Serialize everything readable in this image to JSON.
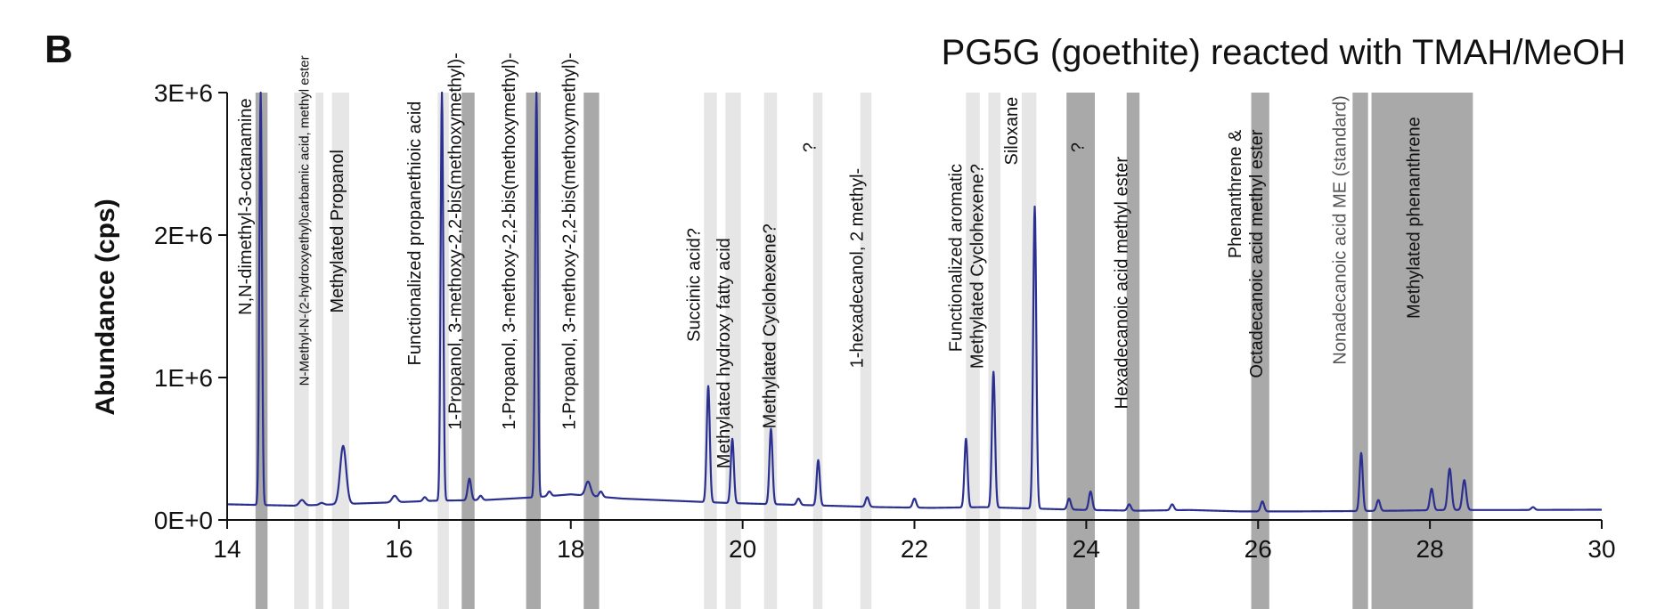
{
  "panel_letter": "B",
  "chart_data": {
    "type": "line",
    "title": "PG5G (goethite) reacted with TMAH/MeOH",
    "xlabel": "",
    "ylabel": "Abundance (cps)",
    "xlim": [
      14,
      30
    ],
    "ylim": [
      0,
      3000000
    ],
    "xticks": [
      14,
      16,
      18,
      20,
      22,
      24,
      26,
      28,
      30
    ],
    "yticks": [
      {
        "value": 0,
        "label": "0E+0"
      },
      {
        "value": 1000000,
        "label": "1E+6"
      },
      {
        "value": 2000000,
        "label": "2E+6"
      },
      {
        "value": 3000000,
        "label": "3E+6"
      }
    ],
    "grid": false,
    "legend": "none",
    "series_color": "#2b2f8f",
    "highlight_color_dark": "#a9a9a9",
    "highlight_color_light": "#e6e6e6",
    "baseline": [
      [
        14.0,
        110000
      ],
      [
        14.8,
        100000
      ],
      [
        15.5,
        115000
      ],
      [
        16.0,
        125000
      ],
      [
        16.4,
        135000
      ],
      [
        17.0,
        140000
      ],
      [
        17.6,
        160000
      ],
      [
        18.0,
        180000
      ],
      [
        18.6,
        150000
      ],
      [
        19.2,
        135000
      ],
      [
        19.8,
        120000
      ],
      [
        20.4,
        110000
      ],
      [
        21.0,
        100000
      ],
      [
        21.6,
        90000
      ],
      [
        22.2,
        85000
      ],
      [
        22.8,
        90000
      ],
      [
        23.4,
        80000
      ],
      [
        24.0,
        70000
      ],
      [
        24.6,
        65000
      ],
      [
        25.2,
        70000
      ],
      [
        25.8,
        60000
      ],
      [
        26.4,
        60000
      ],
      [
        27.0,
        62000
      ],
      [
        27.6,
        65000
      ],
      [
        28.2,
        70000
      ],
      [
        29.0,
        70000
      ],
      [
        30.0,
        72000
      ]
    ],
    "peaks": [
      {
        "rt": 14.39,
        "height": 3000000,
        "width": 0.015
      },
      {
        "rt": 14.87,
        "height": 140000,
        "width": 0.03
      },
      {
        "rt": 15.1,
        "height": 120000,
        "width": 0.025
      },
      {
        "rt": 15.35,
        "height": 520000,
        "width": 0.035
      },
      {
        "rt": 15.95,
        "height": 170000,
        "width": 0.03
      },
      {
        "rt": 16.3,
        "height": 160000,
        "width": 0.02
      },
      {
        "rt": 16.5,
        "height": 3000000,
        "width": 0.015
      },
      {
        "rt": 16.82,
        "height": 290000,
        "width": 0.02
      },
      {
        "rt": 16.95,
        "height": 170000,
        "width": 0.02
      },
      {
        "rt": 17.6,
        "height": 3000000,
        "width": 0.015
      },
      {
        "rt": 17.75,
        "height": 200000,
        "width": 0.02
      },
      {
        "rt": 18.2,
        "height": 270000,
        "width": 0.03
      },
      {
        "rt": 18.35,
        "height": 200000,
        "width": 0.02
      },
      {
        "rt": 19.6,
        "height": 940000,
        "width": 0.018
      },
      {
        "rt": 19.88,
        "height": 570000,
        "width": 0.018
      },
      {
        "rt": 20.33,
        "height": 640000,
        "width": 0.018
      },
      {
        "rt": 20.65,
        "height": 150000,
        "width": 0.02
      },
      {
        "rt": 20.88,
        "height": 420000,
        "width": 0.018
      },
      {
        "rt": 21.45,
        "height": 160000,
        "width": 0.02
      },
      {
        "rt": 22.0,
        "height": 150000,
        "width": 0.02
      },
      {
        "rt": 22.6,
        "height": 570000,
        "width": 0.018
      },
      {
        "rt": 22.92,
        "height": 1040000,
        "width": 0.018
      },
      {
        "rt": 23.4,
        "height": 2200000,
        "width": 0.018
      },
      {
        "rt": 23.8,
        "height": 150000,
        "width": 0.02
      },
      {
        "rt": 24.05,
        "height": 200000,
        "width": 0.02
      },
      {
        "rt": 24.5,
        "height": 110000,
        "width": 0.02
      },
      {
        "rt": 25.0,
        "height": 110000,
        "width": 0.02
      },
      {
        "rt": 26.05,
        "height": 130000,
        "width": 0.02
      },
      {
        "rt": 27.2,
        "height": 470000,
        "width": 0.018
      },
      {
        "rt": 27.4,
        "height": 140000,
        "width": 0.02
      },
      {
        "rt": 28.02,
        "height": 220000,
        "width": 0.02
      },
      {
        "rt": 28.23,
        "height": 360000,
        "width": 0.022
      },
      {
        "rt": 28.4,
        "height": 280000,
        "width": 0.022
      },
      {
        "rt": 29.2,
        "height": 90000,
        "width": 0.02
      }
    ],
    "highlight_bands": [
      {
        "start": 14.33,
        "end": 14.47,
        "shade": "dark"
      },
      {
        "start": 14.78,
        "end": 14.95,
        "shade": "light"
      },
      {
        "start": 15.03,
        "end": 15.12,
        "shade": "light"
      },
      {
        "start": 15.22,
        "end": 15.42,
        "shade": "light"
      },
      {
        "start": 16.45,
        "end": 16.58,
        "shade": "light"
      },
      {
        "start": 16.73,
        "end": 16.88,
        "shade": "dark"
      },
      {
        "start": 17.48,
        "end": 17.65,
        "shade": "dark"
      },
      {
        "start": 18.15,
        "end": 18.33,
        "shade": "dark"
      },
      {
        "start": 19.55,
        "end": 19.7,
        "shade": "light"
      },
      {
        "start": 19.8,
        "end": 19.98,
        "shade": "light"
      },
      {
        "start": 20.25,
        "end": 20.4,
        "shade": "light"
      },
      {
        "start": 20.82,
        "end": 20.93,
        "shade": "light"
      },
      {
        "start": 21.37,
        "end": 21.5,
        "shade": "light"
      },
      {
        "start": 22.6,
        "end": 22.76,
        "shade": "light"
      },
      {
        "start": 22.86,
        "end": 23.0,
        "shade": "light"
      },
      {
        "start": 23.25,
        "end": 23.42,
        "shade": "light"
      },
      {
        "start": 23.77,
        "end": 24.1,
        "shade": "dark"
      },
      {
        "start": 24.47,
        "end": 24.62,
        "shade": "dark"
      },
      {
        "start": 25.92,
        "end": 26.13,
        "shade": "dark"
      },
      {
        "start": 27.1,
        "end": 27.28,
        "shade": "dark"
      },
      {
        "start": 27.32,
        "end": 28.5,
        "shade": "dark"
      }
    ],
    "annotations": [
      {
        "lines": [
          "N,N-dimethyl-3-octanamine"
        ],
        "x": 14.28,
        "top_y": 2960000,
        "size": "normal",
        "color": "dark"
      },
      {
        "lines": [
          "N-Methyl-N-(2-hydroxyethyl)carbamic acid, methyl ester"
        ],
        "x": 14.95,
        "top_y": 3260000,
        "size": "small",
        "color": "dark"
      },
      {
        "lines": [
          "Methylated Propanol"
        ],
        "x": 15.35,
        "top_y": 2600000,
        "size": "normal",
        "color": "dark"
      },
      {
        "lines": [
          "Functionalized propanethioic acid"
        ],
        "x": 16.25,
        "top_y": 2940000,
        "size": "normal",
        "color": "dark"
      },
      {
        "lines": [
          "1-Propanol, 3-methoxy-2,2-bis(methoxymethyl)-"
        ],
        "x": 16.72,
        "top_y": 3280000,
        "size": "normal",
        "color": "dark"
      },
      {
        "lines": [
          "1-Propanol, 3-methoxy-2,2-bis(methoxymethyl)-"
        ],
        "x": 17.35,
        "top_y": 3280000,
        "size": "normal",
        "color": "dark"
      },
      {
        "lines": [
          "1-Propanol, 3-methoxy-2,2-bis(methoxymethyl)-"
        ],
        "x": 18.05,
        "top_y": 3280000,
        "size": "normal",
        "color": "dark"
      },
      {
        "lines": [
          "Succinic acid?"
        ],
        "x": 19.5,
        "top_y": 2050000,
        "size": "normal",
        "color": "dark"
      },
      {
        "lines": [
          "Methylated hydroxy fatty acid"
        ],
        "x": 19.85,
        "top_y": 1980000,
        "size": "normal",
        "color": "dark"
      },
      {
        "lines": [
          "Methylated Cyclohexene?"
        ],
        "x": 20.38,
        "top_y": 2080000,
        "size": "normal",
        "color": "dark"
      },
      {
        "lines": [
          "?"
        ],
        "x": 20.85,
        "top_y": 2650000,
        "size": "normal",
        "color": "dark"
      },
      {
        "lines": [
          "1-hexadecanol, 2 methyl-"
        ],
        "x": 21.4,
        "top_y": 2470000,
        "size": "normal",
        "color": "dark"
      },
      {
        "lines": [
          "Functionalized aromatic",
          "Methylated Cyclohexene?"
        ],
        "x": 22.55,
        "top_y": 2500000,
        "size": "normal",
        "color": "dark"
      },
      {
        "lines": [
          "Siloxane"
        ],
        "x": 23.2,
        "top_y": 2970000,
        "size": "normal",
        "color": "dark"
      },
      {
        "lines": [
          "?"
        ],
        "x": 23.97,
        "top_y": 2650000,
        "size": "normal",
        "color": "dark"
      },
      {
        "lines": [
          "Hexadecanoic acid methyl ester"
        ],
        "x": 24.48,
        "top_y": 2550000,
        "size": "normal",
        "color": "dark"
      },
      {
        "lines": [
          "Phenanthrene &",
          "Octadecanoic acid methyl ester"
        ],
        "x": 25.8,
        "top_y": 2740000,
        "size": "normal",
        "color": "dark"
      },
      {
        "lines": [
          "Nonadecanoic acid ME (standard)"
        ],
        "x": 27.02,
        "top_y": 2980000,
        "size": "normal",
        "color": "grey"
      },
      {
        "lines": [
          "Methylated phenanthrene"
        ],
        "x": 27.88,
        "top_y": 2830000,
        "size": "normal",
        "color": "dark"
      }
    ]
  }
}
